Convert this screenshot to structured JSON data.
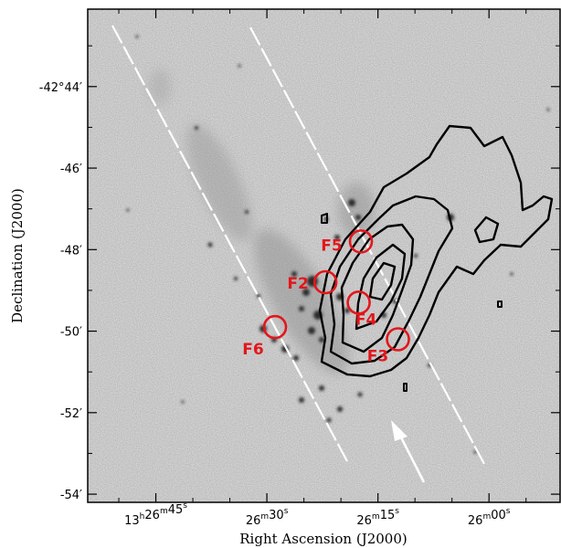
{
  "chart_data": {
    "type": "scatter",
    "title": "",
    "xlabel": "Right Ascension (J2000)",
    "ylabel": "Declination (J2000)",
    "x_ticks": [
      {
        "value": 45,
        "label": "13h26m45s"
      },
      {
        "value": 30,
        "label": "26m30s"
      },
      {
        "value": 15,
        "label": "26m15s"
      },
      {
        "value": 0,
        "label": "26m00s"
      }
    ],
    "y_ticks": [
      {
        "value": -44,
        "label": "-42°44′"
      },
      {
        "value": -46,
        "label": "-46′"
      },
      {
        "value": -48,
        "label": "-48′"
      },
      {
        "value": -50,
        "label": "-50′"
      },
      {
        "value": -52,
        "label": "-52′"
      },
      {
        "value": -54,
        "label": "-54′"
      }
    ],
    "xlim": [
      54.2,
      -9.6
    ],
    "ylim": [
      -54.2,
      -42.1
    ],
    "fields": [
      {
        "label": "F5",
        "x": 17.3,
        "y": -47.8
      },
      {
        "label": "F2",
        "x": 22.1,
        "y": -48.8
      },
      {
        "label": "F4",
        "x": 17.6,
        "y": -49.3
      },
      {
        "label": "F3",
        "x": 12.3,
        "y": -50.2
      },
      {
        "label": "F6",
        "x": 28.9,
        "y": -49.9
      }
    ],
    "colors": {
      "circles": "#e3161b",
      "contours": "#000000",
      "background": "#e2e2e2",
      "guide_lines": "#ffffff"
    }
  }
}
